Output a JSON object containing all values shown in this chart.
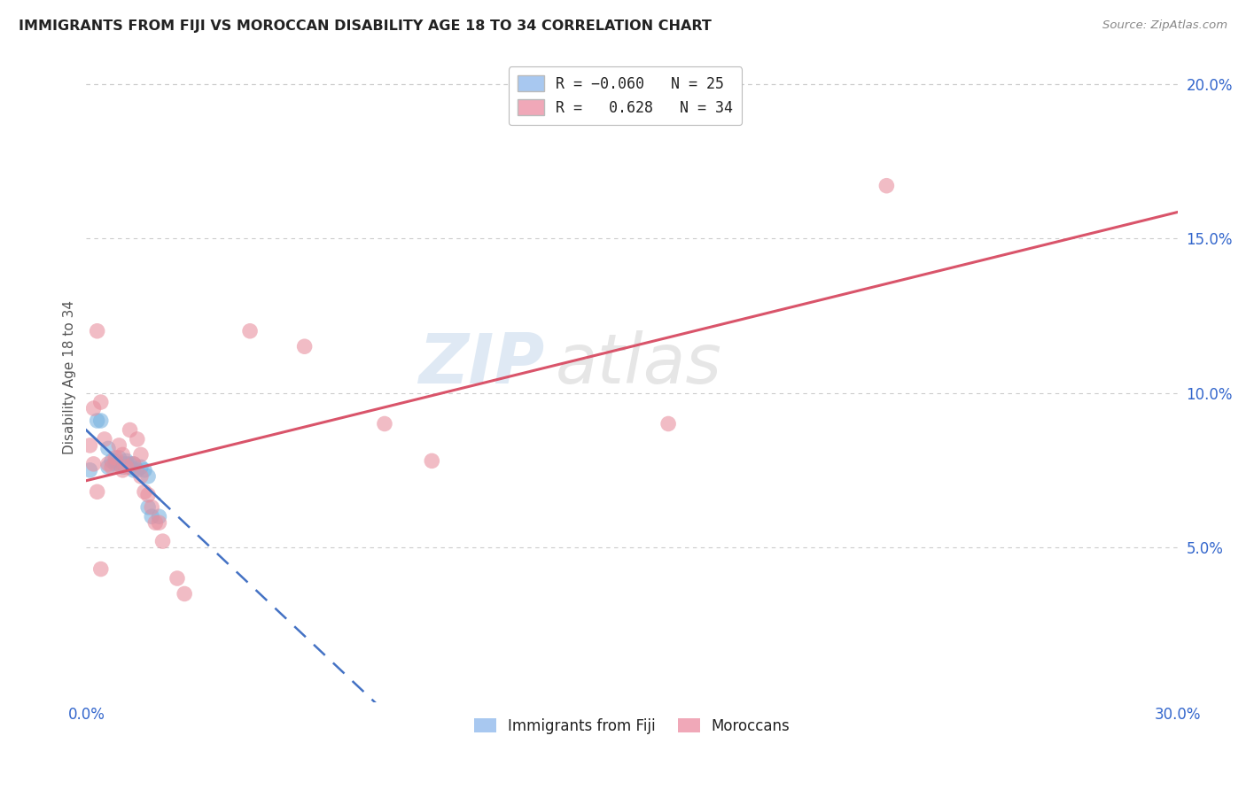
{
  "title": "IMMIGRANTS FROM FIJI VS MOROCCAN DISABILITY AGE 18 TO 34 CORRELATION CHART",
  "source": "Source: ZipAtlas.com",
  "ylabel": "Disability Age 18 to 34",
  "xlim": [
    0.0,
    0.3
  ],
  "ylim": [
    0.0,
    0.21
  ],
  "fiji_color": "#7ab3e0",
  "moroccan_color": "#e8909f",
  "fiji_line_color": "#4472c4",
  "moroccan_line_color": "#d9546a",
  "watermark_zip": "ZIP",
  "watermark_atlas": "atlas",
  "background_color": "#ffffff",
  "grid_color": "#cccccc",
  "fiji_scatter": [
    [
      0.003,
      0.091
    ],
    [
      0.004,
      0.091
    ],
    [
      0.006,
      0.076
    ],
    [
      0.006,
      0.082
    ],
    [
      0.007,
      0.078
    ],
    [
      0.008,
      0.078
    ],
    [
      0.008,
      0.077
    ],
    [
      0.009,
      0.077
    ],
    [
      0.009,
      0.079
    ],
    [
      0.01,
      0.077
    ],
    [
      0.01,
      0.076
    ],
    [
      0.011,
      0.078
    ],
    [
      0.011,
      0.077
    ],
    [
      0.012,
      0.077
    ],
    [
      0.012,
      0.076
    ],
    [
      0.013,
      0.077
    ],
    [
      0.013,
      0.075
    ],
    [
      0.014,
      0.075
    ],
    [
      0.015,
      0.076
    ],
    [
      0.016,
      0.075
    ],
    [
      0.017,
      0.073
    ],
    [
      0.017,
      0.063
    ],
    [
      0.018,
      0.06
    ],
    [
      0.02,
      0.06
    ],
    [
      0.001,
      0.075
    ]
  ],
  "moroccan_scatter": [
    [
      0.001,
      0.083
    ],
    [
      0.002,
      0.095
    ],
    [
      0.002,
      0.077
    ],
    [
      0.003,
      0.12
    ],
    [
      0.003,
      0.068
    ],
    [
      0.004,
      0.097
    ],
    [
      0.004,
      0.043
    ],
    [
      0.005,
      0.085
    ],
    [
      0.006,
      0.077
    ],
    [
      0.007,
      0.076
    ],
    [
      0.008,
      0.079
    ],
    [
      0.009,
      0.083
    ],
    [
      0.01,
      0.08
    ],
    [
      0.01,
      0.075
    ],
    [
      0.011,
      0.076
    ],
    [
      0.012,
      0.088
    ],
    [
      0.013,
      0.077
    ],
    [
      0.014,
      0.085
    ],
    [
      0.015,
      0.08
    ],
    [
      0.015,
      0.073
    ],
    [
      0.016,
      0.068
    ],
    [
      0.017,
      0.067
    ],
    [
      0.018,
      0.063
    ],
    [
      0.019,
      0.058
    ],
    [
      0.02,
      0.058
    ],
    [
      0.021,
      0.052
    ],
    [
      0.025,
      0.04
    ],
    [
      0.027,
      0.035
    ],
    [
      0.045,
      0.12
    ],
    [
      0.06,
      0.115
    ],
    [
      0.082,
      0.09
    ],
    [
      0.095,
      0.078
    ],
    [
      0.22,
      0.167
    ],
    [
      0.16,
      0.09
    ]
  ],
  "fiji_R": "-0.060",
  "fiji_N": "25",
  "moroccan_R": "0.628",
  "moroccan_N": "34"
}
